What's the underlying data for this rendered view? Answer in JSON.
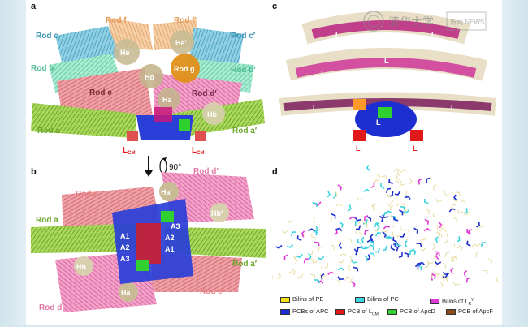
{
  "panels": {
    "a": {
      "label": "a",
      "rods": [
        "Rod c",
        "Rod f",
        "Rod f′",
        "Rod c′",
        "Rod b",
        "Rod b′",
        "Rod e",
        "Rod d′",
        "Rod a",
        "Rod a′"
      ],
      "hex_labels": [
        "He",
        "He′",
        "Hd",
        "Rod g",
        "Ha",
        "Hb"
      ],
      "lcm_left": "L",
      "lcm_right": "L",
      "lcm_sub": "CM"
    },
    "b": {
      "label": "b",
      "rotation": "90°",
      "rods": [
        "Rod d′",
        "Rod e",
        "Rod a",
        "Rod a′",
        "Rod e′",
        "Rod d"
      ],
      "hex_labels": [
        "Ha′",
        "Hb′",
        "Hb",
        "Ha"
      ],
      "core_labels": [
        "A3",
        "A2",
        "A1",
        "A1",
        "A2",
        "A3"
      ]
    },
    "c": {
      "label": "c",
      "linker_labels": [
        "L",
        "L",
        "L",
        "L",
        "L",
        "L",
        "L",
        "L",
        "L",
        "L"
      ]
    },
    "d": {
      "label": "d"
    }
  },
  "legend": [
    {
      "label": "Bilins of PE",
      "color": "#f2e21a"
    },
    {
      "label": "Bilins of PC",
      "color": "#3fd3e0"
    },
    {
      "label": "Bilins of L",
      "sub": "R",
      "sup": "γ",
      "color": "#e03ad6"
    },
    {
      "label": "PCBs of APC",
      "color": "#1d2fd0"
    },
    {
      "label": "PCB of L",
      "sub": "CM",
      "color": "#e01a1a"
    },
    {
      "label": "PCB of ApcD",
      "color": "#2fd02f"
    },
    {
      "label": "PCB of ApcF",
      "color": "#8a4a1e"
    }
  ],
  "watermark": {
    "text": "清华大学",
    "badge": "新闻 NEWS"
  },
  "colors": {
    "pe": "#e57f8a",
    "rod_green": "#8ec63f",
    "apc_blue": "#1d2fd0",
    "lcm_red": "#e01a1a",
    "rod_f": "#f0b67f",
    "rod_c": "#4aa7c6",
    "rod_b": "#6fd4b0",
    "rod_d": "#e0609e",
    "rod_g": "#e0901a"
  }
}
